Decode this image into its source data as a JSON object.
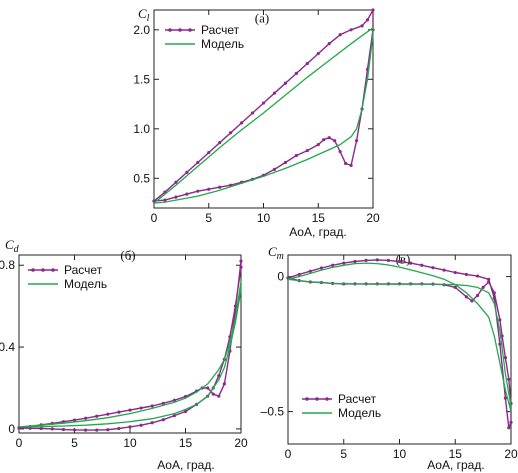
{
  "chart_data": [
    {
      "type": "line",
      "panel": "(а)",
      "ylabel_main": "C",
      "ylabel_sub": "l",
      "xlabel": "AoA, град.",
      "xlim": [
        0,
        20
      ],
      "ylim": [
        0.2,
        2.2
      ],
      "xticks": [
        0,
        5,
        10,
        15,
        20
      ],
      "yticks": [
        0.5,
        1.0,
        1.5,
        2.0
      ],
      "ytick_labels": [
        "0.5",
        "1.0",
        "1.5",
        "2.0"
      ],
      "legend": [
        "Расчет",
        "Модель"
      ],
      "colors": {
        "calc": "#8a2a8a",
        "model": "#22a84a"
      },
      "series": [
        {
          "name": "Расчет",
          "x": [
            0,
            1,
            2,
            3,
            4,
            5,
            6,
            7,
            8,
            9,
            10,
            11,
            12,
            13,
            14,
            15,
            16,
            17,
            18,
            19,
            19.5,
            20,
            20,
            19.5,
            19,
            18.5,
            18,
            17.5,
            17,
            16.5,
            16,
            15.5,
            15,
            14,
            13,
            12,
            11,
            10,
            9,
            8,
            7,
            6,
            5,
            4,
            3,
            2,
            1,
            0
          ],
          "y": [
            0.27,
            0.36,
            0.46,
            0.56,
            0.66,
            0.76,
            0.86,
            0.96,
            1.06,
            1.16,
            1.26,
            1.36,
            1.46,
            1.56,
            1.66,
            1.76,
            1.86,
            1.95,
            2.0,
            2.04,
            2.1,
            2.2,
            2.0,
            1.6,
            1.2,
            0.88,
            0.63,
            0.65,
            0.77,
            0.88,
            0.91,
            0.89,
            0.84,
            0.78,
            0.73,
            0.66,
            0.59,
            0.53,
            0.49,
            0.46,
            0.43,
            0.41,
            0.39,
            0.37,
            0.34,
            0.31,
            0.28,
            0.27
          ]
        },
        {
          "name": "Модель",
          "x": [
            0,
            2,
            4,
            6,
            8,
            10,
            12,
            14,
            16,
            18,
            19,
            20,
            20,
            19.5,
            19,
            18.5,
            18,
            17,
            16,
            15,
            14,
            12,
            10,
            8,
            6,
            4,
            2,
            1,
            0
          ],
          "y": [
            0.25,
            0.43,
            0.62,
            0.81,
            0.99,
            1.16,
            1.34,
            1.52,
            1.69,
            1.86,
            1.94,
            2.02,
            1.95,
            1.5,
            1.2,
            1.0,
            0.92,
            0.84,
            0.79,
            0.74,
            0.69,
            0.6,
            0.52,
            0.45,
            0.38,
            0.32,
            0.28,
            0.26,
            0.25
          ]
        }
      ]
    },
    {
      "type": "line",
      "panel": "(б)",
      "ylabel_main": "C",
      "ylabel_sub": "d",
      "xlabel": "AoA, град.",
      "xlim": [
        0,
        20
      ],
      "ylim": [
        -0.02,
        0.85
      ],
      "xticks": [
        0,
        5,
        10,
        15,
        20
      ],
      "yticks": [
        0,
        0.4,
        0.8
      ],
      "ytick_labels": [
        "0",
        "0.4",
        "0.8"
      ],
      "legend": [
        "Расчет",
        "Модель"
      ],
      "series": [
        {
          "name": "Расчет",
          "x": [
            0,
            1,
            2,
            3,
            4,
            5,
            6,
            7,
            8,
            9,
            10,
            11,
            12,
            13,
            14,
            15,
            16,
            16.5,
            17,
            17.5,
            18,
            18.5,
            19,
            19.5,
            20,
            20,
            19.5,
            19,
            18.5,
            18,
            17.5,
            17,
            16,
            15,
            14,
            13,
            12,
            11,
            10,
            9,
            8,
            7,
            6,
            5,
            4,
            3,
            2,
            1,
            0
          ],
          "y": [
            0.005,
            0.012,
            0.02,
            0.027,
            0.035,
            0.043,
            0.052,
            0.062,
            0.072,
            0.082,
            0.092,
            0.102,
            0.112,
            0.125,
            0.14,
            0.158,
            0.185,
            0.2,
            0.2,
            0.17,
            0.16,
            0.22,
            0.38,
            0.58,
            0.82,
            0.79,
            0.6,
            0.45,
            0.34,
            0.26,
            0.2,
            0.16,
            0.12,
            0.085,
            0.065,
            0.045,
            0.03,
            0.018,
            0.01,
            0.002,
            -0.004,
            -0.006,
            -0.006,
            -0.005,
            -0.003,
            0,
            0.002,
            0.003,
            0.005
          ]
        },
        {
          "name": "Модель",
          "x": [
            0,
            2,
            4,
            6,
            8,
            10,
            12,
            14,
            15,
            16,
            17,
            18,
            18.5,
            19,
            19.5,
            20,
            20,
            19.5,
            19,
            18.5,
            18,
            17,
            16,
            15,
            14,
            12,
            10,
            8,
            6,
            4,
            2,
            0
          ],
          "y": [
            0.01,
            0.018,
            0.028,
            0.04,
            0.055,
            0.075,
            0.1,
            0.13,
            0.15,
            0.18,
            0.22,
            0.29,
            0.34,
            0.42,
            0.54,
            0.72,
            0.68,
            0.52,
            0.4,
            0.3,
            0.24,
            0.16,
            0.12,
            0.095,
            0.075,
            0.05,
            0.035,
            0.025,
            0.018,
            0.014,
            0.011,
            0.01
          ]
        }
      ]
    },
    {
      "type": "line",
      "panel": "(в)",
      "ylabel_main": "C",
      "ylabel_sub": "m",
      "xlabel": "AoA, град.",
      "xlim": [
        0,
        20
      ],
      "ylim": [
        -0.62,
        0.08
      ],
      "xticks": [
        0,
        5,
        10,
        15,
        20
      ],
      "yticks": [
        0,
        -0.5
      ],
      "ytick_labels": [
        "0",
        "–0.5"
      ],
      "legend": [
        "Расчет",
        "Модель"
      ],
      "series": [
        {
          "name": "Расчет",
          "x": [
            0,
            1,
            2,
            3,
            4,
            5,
            6,
            7,
            8,
            9,
            10,
            11,
            12,
            13,
            14,
            15,
            16,
            17,
            18,
            18.5,
            19,
            19.5,
            19.8,
            20,
            20,
            19.8,
            19.5,
            19.2,
            19,
            18.5,
            18,
            17.5,
            17,
            16.5,
            16,
            15,
            14,
            13,
            12,
            11,
            10,
            9,
            8,
            7,
            6,
            5,
            4,
            3,
            2,
            1,
            0
          ],
          "y": [
            -0.005,
            0.008,
            0.02,
            0.032,
            0.042,
            0.05,
            0.056,
            0.06,
            0.062,
            0.06,
            0.056,
            0.05,
            0.042,
            0.033,
            0.024,
            0.015,
            0.008,
            0.002,
            -0.01,
            -0.08,
            -0.25,
            -0.45,
            -0.56,
            -0.54,
            -0.47,
            -0.38,
            -0.3,
            -0.22,
            -0.16,
            -0.06,
            -0.02,
            -0.04,
            -0.07,
            -0.09,
            -0.075,
            -0.04,
            -0.03,
            -0.028,
            -0.027,
            -0.027,
            -0.027,
            -0.027,
            -0.027,
            -0.027,
            -0.027,
            -0.027,
            -0.025,
            -0.022,
            -0.02,
            -0.015,
            -0.005
          ]
        },
        {
          "name": "Модель",
          "x": [
            0,
            1,
            2,
            3,
            4,
            5,
            6,
            7,
            8,
            9,
            10,
            11,
            12,
            13,
            14,
            15,
            16,
            17,
            18,
            18.5,
            19,
            19.5,
            20,
            20,
            19.5,
            19,
            18.5,
            18,
            17,
            16,
            15,
            14,
            12,
            10,
            8,
            6,
            4,
            2,
            1,
            0
          ],
          "y": [
            -0.01,
            0.0,
            0.012,
            0.024,
            0.034,
            0.042,
            0.048,
            0.05,
            0.048,
            0.043,
            0.035,
            0.025,
            0.014,
            0.003,
            -0.01,
            -0.03,
            -0.06,
            -0.1,
            -0.15,
            -0.22,
            -0.32,
            -0.42,
            -0.5,
            -0.48,
            -0.36,
            -0.2,
            -0.1,
            -0.06,
            -0.04,
            -0.033,
            -0.03,
            -0.029,
            -0.028,
            -0.028,
            -0.028,
            -0.027,
            -0.025,
            -0.02,
            -0.015,
            -0.01
          ]
        }
      ]
    }
  ]
}
